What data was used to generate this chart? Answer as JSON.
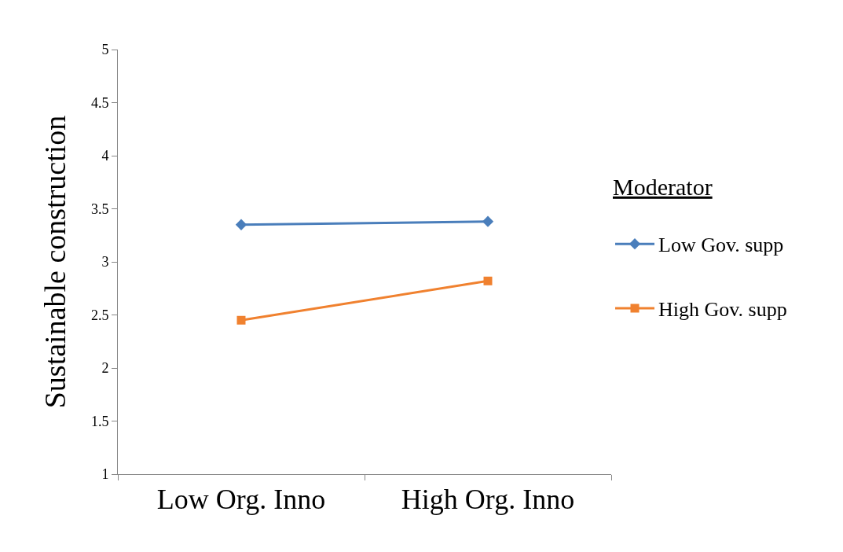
{
  "chart_data": {
    "type": "line",
    "ylabel": "Sustainable construction",
    "legend_title": "Moderator",
    "categories": [
      "Low Org. Inno",
      "High Org. Inno"
    ],
    "series": [
      {
        "name": "Low Gov. supp",
        "color": "#4a7ebb",
        "values": [
          3.35,
          3.38
        ],
        "marker": "diamond"
      },
      {
        "name": "High Gov. supp",
        "color": "#f0812f",
        "values": [
          2.45,
          2.82
        ],
        "marker": "square"
      }
    ],
    "ylim": [
      1,
      5
    ],
    "yticks": [
      1,
      1.5,
      2,
      2.5,
      3,
      3.5,
      4,
      4.5,
      5
    ],
    "legend": "right",
    "line_style": "solid"
  }
}
